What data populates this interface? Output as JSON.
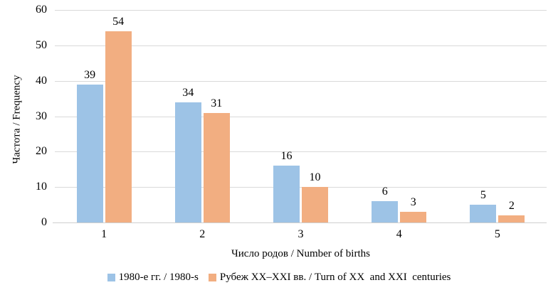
{
  "chart_data": {
    "type": "bar",
    "title": "",
    "categories": [
      "1",
      "2",
      "3",
      "4",
      "5"
    ],
    "series": [
      {
        "name": "1980-е гг. / 1980-s",
        "color": "#9DC3E6",
        "values": [
          39,
          34,
          16,
          6,
          5
        ]
      },
      {
        "name": "Рубеж XX–XXI вв. / Turn of XX  and XXI  centuries",
        "color": "#F2AE81",
        "values": [
          54,
          31,
          10,
          3,
          2
        ]
      }
    ],
    "xlabel": "Число родов / Number of births",
    "ylabel": "Частота / Frequency",
    "ylim": [
      0,
      60
    ],
    "yticks": [
      0,
      10,
      20,
      30,
      40,
      50,
      60
    ],
    "grid": true,
    "legend_position": "bottom",
    "gridline_color": "#D9D9D9",
    "text_color": "#000000",
    "background_color": "#FFFFFF"
  }
}
